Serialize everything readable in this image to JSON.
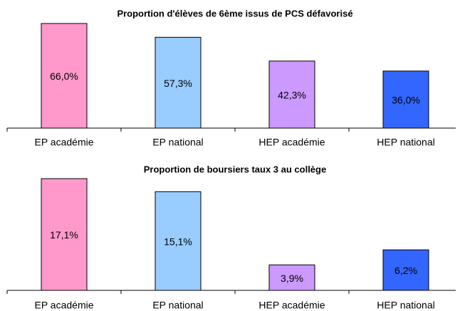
{
  "chart_data": [
    {
      "type": "bar",
      "title": "Proportion d'élèves de 6ème issus de PCS défavorisé",
      "categories": [
        "EP académie",
        "EP national",
        "HEP académie",
        "HEP national"
      ],
      "values": [
        66.0,
        57.3,
        42.3,
        36.0
      ],
      "value_labels": [
        "66,0%",
        "57,3%",
        "42,3%",
        "36,0%"
      ],
      "colors": [
        "#ff99cc",
        "#99ccff",
        "#cc99ff",
        "#3366ff"
      ]
    },
    {
      "type": "bar",
      "title": "Proportion de boursiers taux 3 au collège",
      "categories": [
        "EP académie",
        "EP national",
        "HEP académie",
        "HEP national"
      ],
      "values": [
        17.1,
        15.1,
        3.9,
        6.2
      ],
      "value_labels": [
        "17,1%",
        "15,1%",
        "3,9%",
        "6,2%"
      ],
      "colors": [
        "#ff99cc",
        "#99ccff",
        "#cc99ff",
        "#3366ff"
      ]
    }
  ]
}
